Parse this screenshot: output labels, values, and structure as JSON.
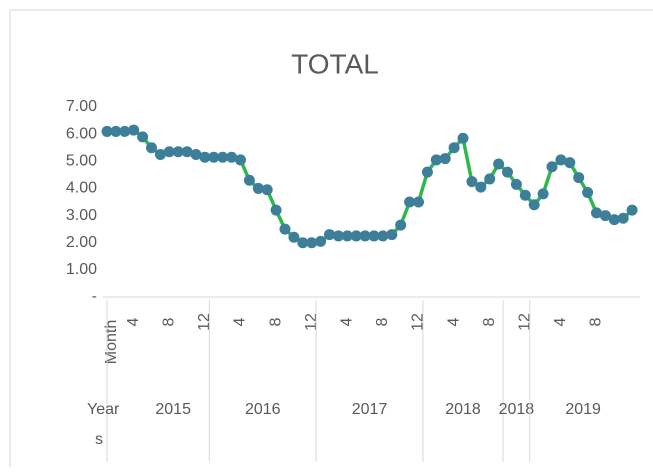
{
  "chart_data": {
    "type": "line",
    "title": "TOTAL",
    "x_field_label": "Month",
    "year_field_label": "Years",
    "categories": [
      null,
      null,
      null,
      "4",
      null,
      null,
      null,
      "8",
      null,
      null,
      null,
      "12",
      null,
      null,
      null,
      "4",
      null,
      null,
      null,
      "8",
      null,
      null,
      null,
      "12",
      null,
      null,
      null,
      "4",
      null,
      null,
      null,
      "8",
      null,
      null,
      null,
      "12",
      null,
      null,
      null,
      "4",
      null,
      null,
      null,
      "8",
      null,
      null,
      null,
      "12",
      null,
      null,
      null,
      "4",
      null,
      null,
      null,
      "8",
      null,
      null,
      null,
      null
    ],
    "year_groups": [
      {
        "label": "2015",
        "count": 12
      },
      {
        "label": "2016",
        "count": 12
      },
      {
        "label": "2017",
        "count": 12
      },
      {
        "label": "2018",
        "count": 9
      },
      {
        "label": "2018",
        "count": 3
      },
      {
        "label": "2019",
        "count": 12
      }
    ],
    "series": [
      {
        "name": "Total",
        "color": "#2eb84b",
        "marker_color": "#3d7f99",
        "values": [
          6.1,
          6.1,
          6.1,
          6.15,
          5.9,
          5.5,
          5.25,
          5.35,
          5.35,
          5.35,
          5.25,
          5.15,
          5.15,
          5.15,
          5.15,
          5.05,
          4.3,
          4.0,
          3.95,
          3.2,
          2.5,
          2.2,
          2.0,
          2.0,
          2.05,
          2.3,
          2.25,
          2.25,
          2.25,
          2.25,
          2.25,
          2.25,
          2.3,
          2.65,
          3.5,
          3.5,
          4.6,
          5.05,
          5.1,
          5.5,
          5.85,
          4.25,
          4.05,
          4.35,
          4.9,
          4.6,
          4.15,
          3.75,
          3.4,
          3.8,
          4.8,
          5.05,
          4.95,
          4.4,
          3.85,
          3.1,
          3.0,
          2.85,
          2.9,
          3.2
        ]
      }
    ],
    "ylim": [
      0,
      7
    ],
    "yticks": [
      {
        "value": 0,
        "label": "-"
      },
      {
        "value": 1,
        "label": "1.00"
      },
      {
        "value": 2,
        "label": "2.00"
      },
      {
        "value": 3,
        "label": "3.00"
      },
      {
        "value": 4,
        "label": "4.00"
      },
      {
        "value": 5,
        "label": "5.00"
      },
      {
        "value": 6,
        "label": "6.00"
      },
      {
        "value": 7,
        "label": "7.00"
      }
    ],
    "grid": false
  }
}
